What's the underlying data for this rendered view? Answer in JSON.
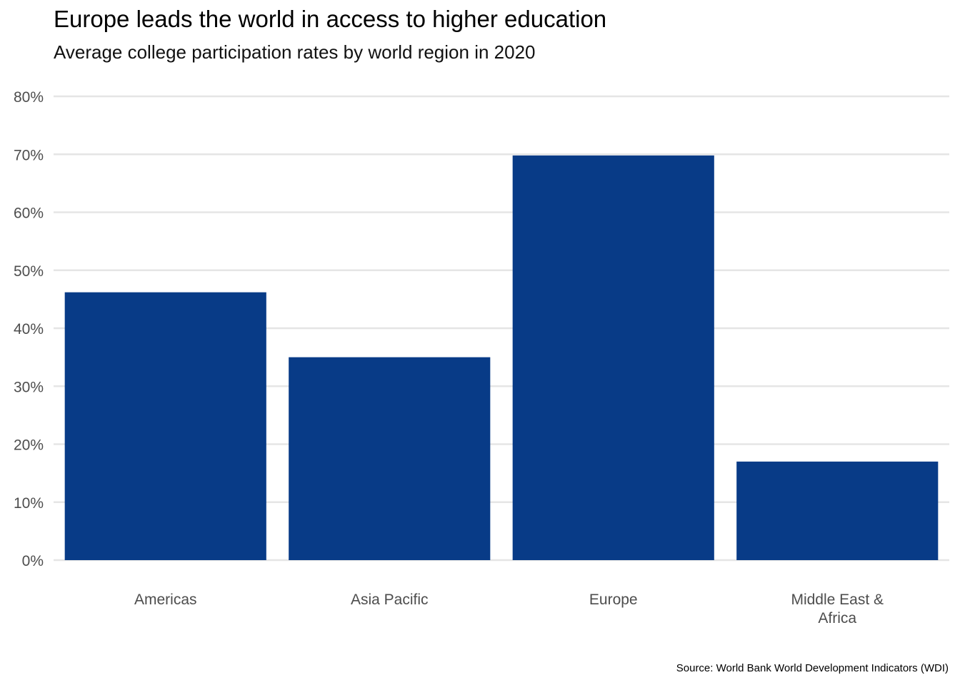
{
  "chart_data": {
    "type": "bar",
    "title": "Europe leads the world in access to higher education",
    "subtitle": "Average college participation rates by world region in 2020",
    "caption": "Source: World Bank World Development Indicators (WDI)",
    "xlabel": "",
    "ylabel": "",
    "categories": [
      "Americas",
      "Asia Pacific",
      "Europe",
      "Middle East & Africa"
    ],
    "category_tick_lines": [
      [
        "Americas"
      ],
      [
        "Asia Pacific"
      ],
      [
        "Europe"
      ],
      [
        "Middle East &",
        "Africa"
      ]
    ],
    "values": [
      46.2,
      35.0,
      69.8,
      17.0
    ],
    "ylim": [
      0,
      80
    ],
    "y_ticks": [
      0,
      10,
      20,
      30,
      40,
      50,
      60,
      70,
      80
    ],
    "y_tick_labels": [
      "0%",
      "10%",
      "20%",
      "30%",
      "40%",
      "50%",
      "60%",
      "70%",
      "80%"
    ],
    "bar_color": "#083b87",
    "grid_color": "#e5e5e5",
    "grid": true,
    "legend": "none"
  }
}
